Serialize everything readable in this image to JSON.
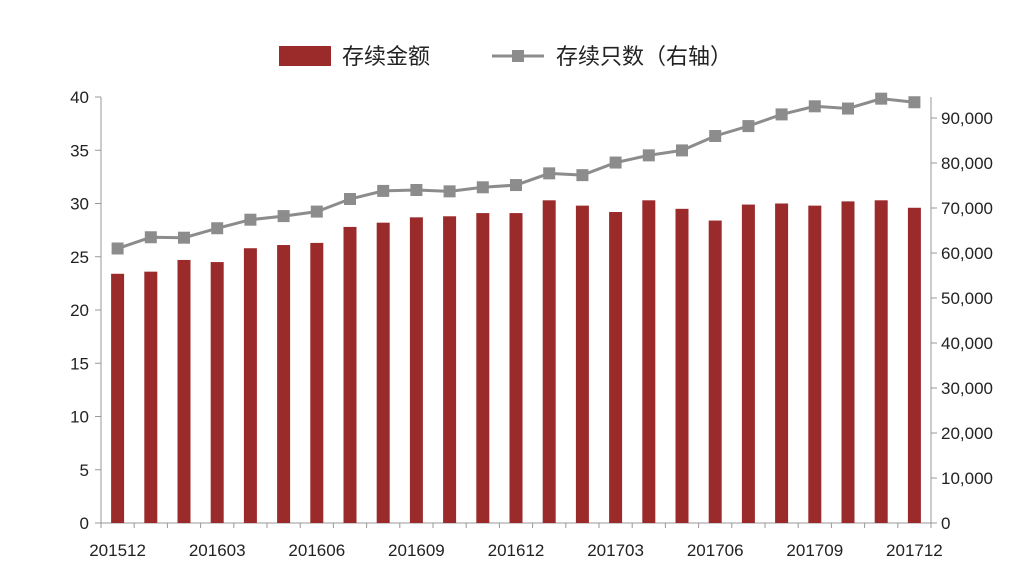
{
  "chart_data": {
    "type": "bar",
    "x": [
      "201512",
      "201601",
      "201602",
      "201603",
      "201604",
      "201605",
      "201606",
      "201607",
      "201608",
      "201609",
      "201610",
      "201611",
      "201612",
      "201701",
      "201702",
      "201703",
      "201704",
      "201705",
      "201706",
      "201707",
      "201708",
      "201709",
      "201710",
      "201711",
      "201712"
    ],
    "x_tick_labels": [
      "201512",
      "201603",
      "201606",
      "201609",
      "201612",
      "201703",
      "201706",
      "201709",
      "201712"
    ],
    "series": [
      {
        "name": "存续金额",
        "type": "bar",
        "axis": "left",
        "color": "#9b2a2b",
        "values": [
          23.4,
          23.6,
          24.7,
          24.5,
          25.8,
          26.1,
          26.3,
          27.8,
          28.2,
          28.7,
          28.8,
          29.1,
          29.1,
          30.3,
          29.8,
          29.2,
          30.3,
          29.5,
          28.4,
          29.9,
          30.0,
          29.8,
          30.2,
          30.3,
          29.6
        ]
      },
      {
        "name": "存续只数（右轴）",
        "type": "line",
        "axis": "right",
        "color": "#8c8c8c",
        "values": [
          61000,
          63500,
          63400,
          65500,
          67400,
          68200,
          69200,
          72000,
          73800,
          74000,
          73700,
          74600,
          75100,
          77700,
          77300,
          80100,
          81700,
          82800,
          86000,
          88200,
          90800,
          92600,
          92100,
          94300,
          93500
        ]
      }
    ],
    "y_left": {
      "min": 0,
      "max": 40,
      "step": 5,
      "tick_labels": [
        "0",
        "5",
        "10",
        "15",
        "20",
        "25",
        "30",
        "35",
        "40"
      ]
    },
    "y_right": {
      "min": 0,
      "max": 95000,
      "step": 10000,
      "tick_labels": [
        "0",
        "10,000",
        "20,000",
        "30,000",
        "40,000",
        "50,000",
        "60,000",
        "70,000",
        "80,000",
        "90,000"
      ]
    },
    "legend_position": "top-center",
    "grid": false
  }
}
